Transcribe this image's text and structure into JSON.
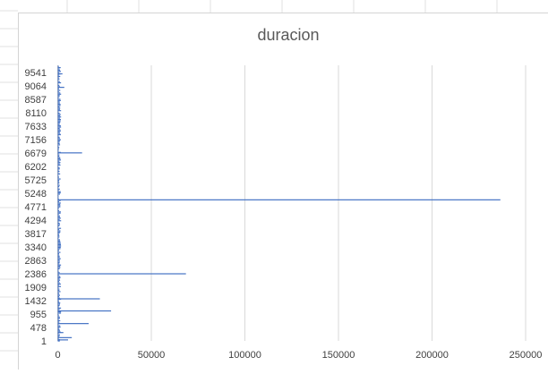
{
  "chart_data": {
    "type": "bar",
    "orientation": "horizontal",
    "title": "duracion",
    "xlim": [
      0,
      250000
    ],
    "x_ticks": [
      0,
      50000,
      100000,
      150000,
      200000,
      250000
    ],
    "x_tick_labels": [
      "0",
      "50000",
      "100000",
      "150000",
      "200000",
      "250000"
    ],
    "category_count": 9800,
    "category_labels": [
      "1",
      "478",
      "955",
      "1432",
      "1909",
      "2386",
      "2863",
      "3340",
      "3817",
      "4294",
      "4771",
      "5248",
      "5725",
      "6202",
      "6679",
      "7156",
      "7633",
      "8110",
      "8587",
      "9064",
      "9541"
    ],
    "category_label_values": [
      1,
      478,
      955,
      1432,
      1909,
      2386,
      2863,
      3340,
      3817,
      4294,
      4771,
      5248,
      5725,
      6202,
      6679,
      7156,
      7633,
      8110,
      8587,
      9064,
      9541
    ],
    "grid": true,
    "legend": "none",
    "series_color": "#4472c4",
    "notable_bars": [
      {
        "category": 40,
        "value": 5500
      },
      {
        "category": 120,
        "value": 7500
      },
      {
        "category": 300,
        "value": 3000
      },
      {
        "category": 620,
        "value": 16500
      },
      {
        "category": 1070,
        "value": 28500
      },
      {
        "category": 1500,
        "value": 22500
      },
      {
        "category": 2390,
        "value": 68500
      },
      {
        "category": 5020,
        "value": 236500
      },
      {
        "category": 6690,
        "value": 13000
      },
      {
        "category": 9020,
        "value": 3500
      },
      {
        "category": 9500,
        "value": 2500
      }
    ]
  }
}
